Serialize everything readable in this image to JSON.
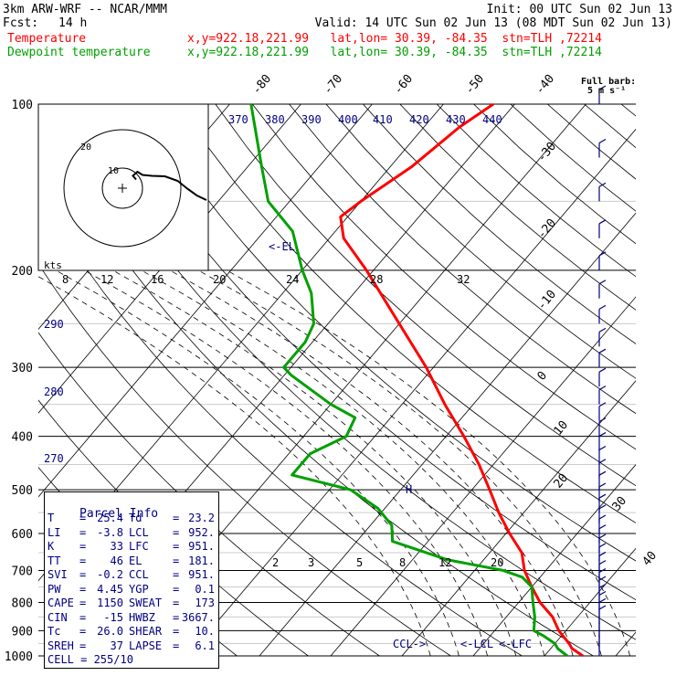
{
  "header": {
    "model": "3km ARW-WRF -- NCAR/MMM",
    "init": "Init: 00 UTC Sun 02 Jun 13",
    "fcst_label": "Fcst:",
    "fcst_value": "14 h",
    "valid": "Valid: 14 UTC Sun 02 Jun 13 (08 MDT Sun 02 Jun 13)",
    "temp_label": "Temperature",
    "temp_loc": "x,y=922.18,221.99   lat,lon= 30.39, -84.35  stn=TLH ,72214",
    "dew_label": "Dewpoint temperature",
    "dew_loc": "x,y=922.18,221.99   lat,lon= 30.39, -84.35  stn=TLH ,72214"
  },
  "hodograph": {
    "kts_label": "kts",
    "ring_labels": [
      "10",
      "20"
    ]
  },
  "wind_key": {
    "title": "Full barb:",
    "value": "5 m s⁻¹"
  },
  "parcel_info": {
    "title": "Parcel Info",
    "rows": [
      {
        "k1": "T",
        "v1": "25.4",
        "k2": "Td",
        "v2": "23.2"
      },
      {
        "k1": "LI",
        "v1": "-3.8",
        "k2": "LCL",
        "v2": "952."
      },
      {
        "k1": "K",
        "v1": "33",
        "k2": "LFC",
        "v2": "951."
      },
      {
        "k1": "TT",
        "v1": "46",
        "k2": "EL",
        "v2": "181."
      },
      {
        "k1": "SVI",
        "v1": "-0.2",
        "k2": "CCL",
        "v2": "951."
      },
      {
        "k1": "PW",
        "v1": "4.45",
        "k2": "YGP",
        "v2": "0.1"
      },
      {
        "k1": "CAPE",
        "v1": "1150",
        "k2": "SWEAT",
        "v2": "173"
      },
      {
        "k1": "CIN",
        "v1": "-15",
        "k2": "HWBZ",
        "v2": "3667."
      },
      {
        "k1": "Tc",
        "v1": "26.0",
        "k2": "SHEAR",
        "v2": "10."
      },
      {
        "k1": "SREH",
        "v1": "37",
        "k2": "LAPSE",
        "v2": "6.1"
      },
      {
        "k1": "CELL",
        "v1": "= 255/10",
        "k2": "",
        "v2": ""
      }
    ]
  },
  "chart_data": {
    "type": "line",
    "chart_kind": "Skew-T log-P sounding",
    "y_axis": "pressure (hPa), log scale",
    "ylim": [
      1000,
      100
    ],
    "pressure_ticks": [
      100,
      200,
      300,
      400,
      500,
      600,
      700,
      800,
      900,
      1000
    ],
    "isotherm_labels": [
      "-80",
      "-70",
      "-60",
      "-50",
      "-40",
      "-30",
      "-20",
      "-10",
      "0",
      "10",
      "20",
      "30",
      "40"
    ],
    "theta_labels": [
      "370",
      "380",
      "390",
      "400",
      "410",
      "420",
      "430",
      "440",
      "290",
      "280",
      "270"
    ],
    "mixing_ratio_labels": [
      "8",
      "12",
      "16",
      "20",
      "24",
      "28",
      "32",
      "2",
      "3",
      "5",
      "8",
      "12",
      "20"
    ],
    "level_marks": [
      "<-EL",
      "H",
      "CCL->",
      "<-LCL",
      "<-LFC"
    ],
    "series": [
      {
        "name": "Temperature",
        "color": "#ff0000",
        "points": [
          {
            "p": 1000,
            "t": 25.4
          },
          {
            "p": 970,
            "t": 23.0
          },
          {
            "p": 950,
            "t": 22.0
          },
          {
            "p": 900,
            "t": 19.0
          },
          {
            "p": 850,
            "t": 16.5
          },
          {
            "p": 800,
            "t": 13.0
          },
          {
            "p": 750,
            "t": 10.0
          },
          {
            "p": 700,
            "t": 7.0
          },
          {
            "p": 650,
            "t": 4.5
          },
          {
            "p": 600,
            "t": 0.5
          },
          {
            "p": 550,
            "t": -3.5
          },
          {
            "p": 500,
            "t": -7.5
          },
          {
            "p": 450,
            "t": -12.0
          },
          {
            "p": 400,
            "t": -17.5
          },
          {
            "p": 350,
            "t": -24.0
          },
          {
            "p": 300,
            "t": -31.0
          },
          {
            "p": 250,
            "t": -40.0
          },
          {
            "p": 200,
            "t": -51.0
          },
          {
            "p": 175,
            "t": -58.0
          },
          {
            "p": 160,
            "t": -61.0
          },
          {
            "p": 150,
            "t": -60.0
          },
          {
            "p": 130,
            "t": -57.0
          },
          {
            "p": 110,
            "t": -55.0
          },
          {
            "p": 100,
            "t": -53.0
          }
        ]
      },
      {
        "name": "Dewpoint temperature",
        "color": "#00a000",
        "points": [
          {
            "p": 1000,
            "t": 23.2
          },
          {
            "p": 970,
            "t": 21.0
          },
          {
            "p": 950,
            "t": 20.0
          },
          {
            "p": 920,
            "t": 17.5
          },
          {
            "p": 900,
            "t": 15.5
          },
          {
            "p": 850,
            "t": 14.0
          },
          {
            "p": 800,
            "t": 12.0
          },
          {
            "p": 750,
            "t": 10.0
          },
          {
            "p": 720,
            "t": 7.5
          },
          {
            "p": 700,
            "t": 4.0
          },
          {
            "p": 670,
            "t": -5.0
          },
          {
            "p": 620,
            "t": -15.0
          },
          {
            "p": 580,
            "t": -17.0
          },
          {
            "p": 540,
            "t": -21.0
          },
          {
            "p": 500,
            "t": -27.0
          },
          {
            "p": 470,
            "t": -37.0
          },
          {
            "p": 430,
            "t": -37.0
          },
          {
            "p": 400,
            "t": -34.0
          },
          {
            "p": 370,
            "t": -35.0
          },
          {
            "p": 350,
            "t": -40.0
          },
          {
            "p": 310,
            "t": -49.0
          },
          {
            "p": 300,
            "t": -51.0
          },
          {
            "p": 270,
            "t": -51.0
          },
          {
            "p": 250,
            "t": -52.0
          },
          {
            "p": 220,
            "t": -56.0
          },
          {
            "p": 200,
            "t": -60.0
          },
          {
            "p": 170,
            "t": -66.0
          },
          {
            "p": 150,
            "t": -73.0
          },
          {
            "p": 130,
            "t": -78.0
          },
          {
            "p": 100,
            "t": -87.0
          }
        ]
      }
    ],
    "hodograph_trace": [
      {
        "u": 1,
        "v": -0.5
      },
      {
        "u": 0.5,
        "v": 0.3
      },
      {
        "u": 1.2,
        "v": 1.2
      },
      {
        "u": 2.0,
        "v": 0.5
      },
      {
        "u": 3.5,
        "v": 0.3
      },
      {
        "u": 5.5,
        "v": 0.2
      },
      {
        "u": 7.5,
        "v": -0.8
      },
      {
        "u": 9.0,
        "v": -2.5
      },
      {
        "u": 10.5,
        "v": -4.0
      },
      {
        "u": 12.0,
        "v": -5.0
      }
    ]
  },
  "colors": {
    "temperature": "#ff0000",
    "dewpoint": "#00a000",
    "labels": "#000080",
    "grid": "#000000"
  }
}
